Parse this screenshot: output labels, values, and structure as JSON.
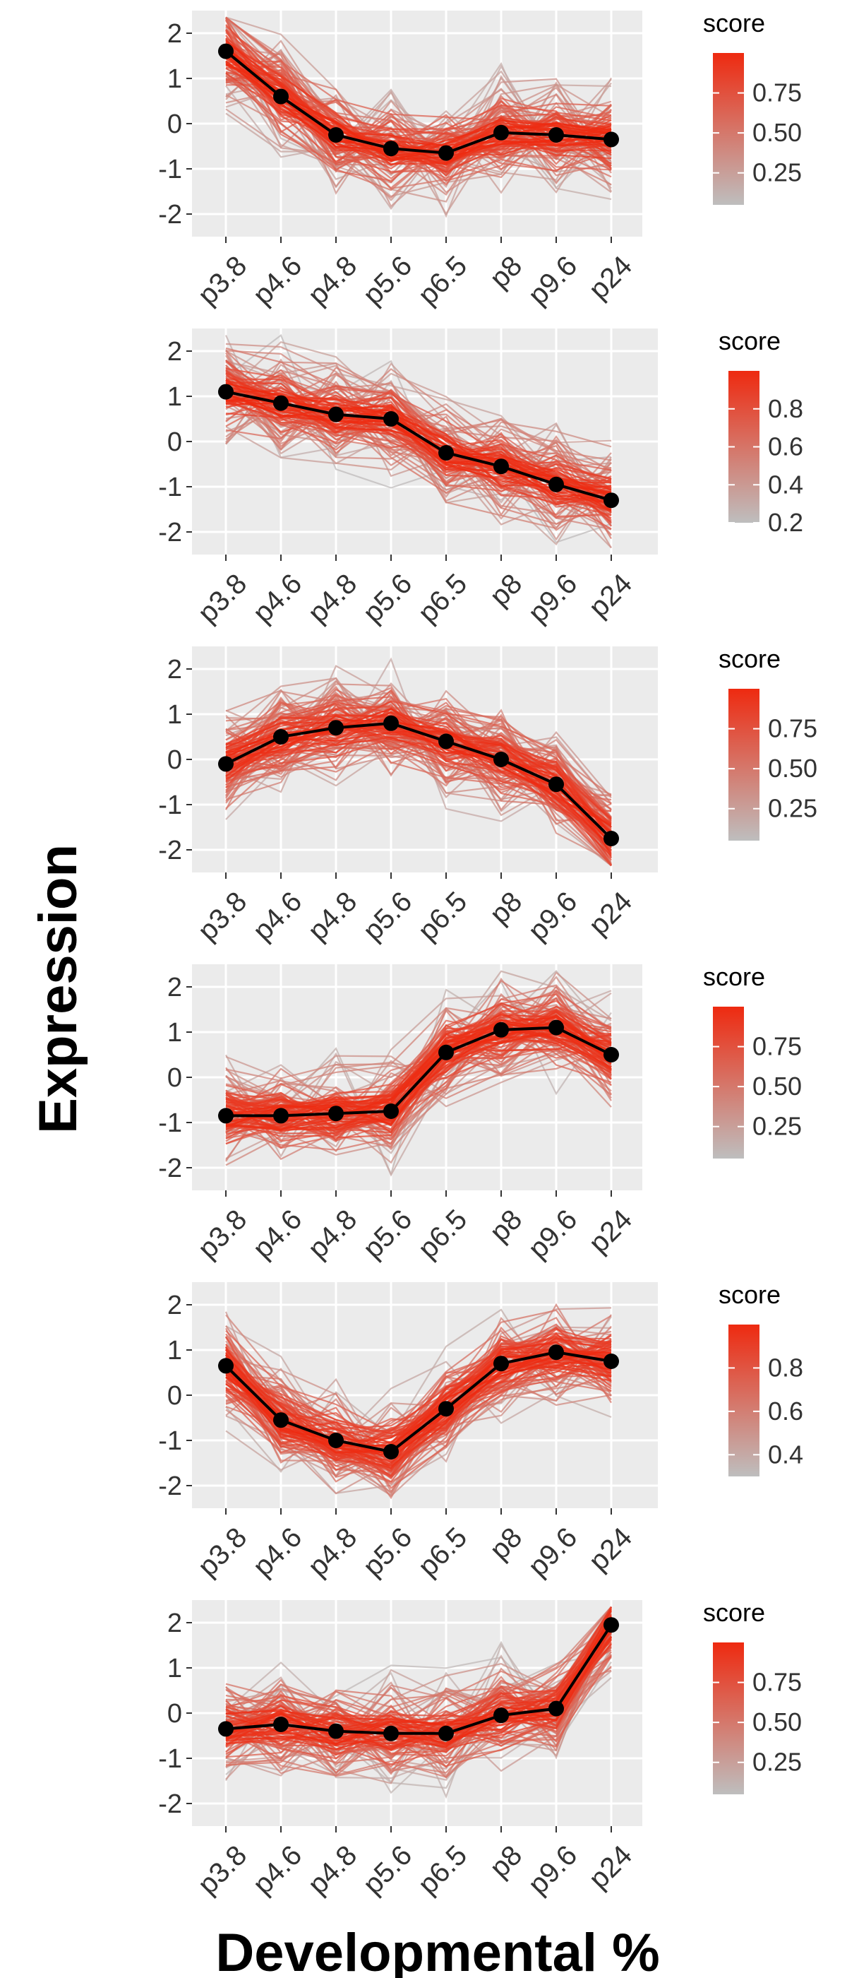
{
  "figure": {
    "ylabel": "Expression",
    "xlabel": "Developmental %"
  },
  "chart_data": [
    {
      "type": "line",
      "categories": [
        "p3.8",
        "p4.6",
        "p4.8",
        "p5.6",
        "p6.5",
        "p8",
        "p9.6",
        "p24"
      ],
      "ylim": [
        -2.5,
        2.5
      ],
      "yticks": [
        2,
        1,
        0,
        -1,
        -2
      ],
      "yticklabels": [
        "2",
        "1",
        "0",
        "-1",
        "-2"
      ],
      "grid": true,
      "series": [
        {
          "values": [
            1.6,
            0.6,
            -0.25,
            -0.55,
            -0.65,
            -0.2,
            -0.25,
            -0.35
          ]
        }
      ],
      "legend": {
        "title": "score",
        "position": "right",
        "range": [
          0.05,
          1.0
        ],
        "ticks": [
          0.75,
          0.5,
          0.25
        ],
        "ticklabels": [
          "0.75",
          "0.50",
          "0.25"
        ],
        "low_color": "#bebebe",
        "high_color": "#ee2a10"
      }
    },
    {
      "type": "line",
      "categories": [
        "p3.8",
        "p4.6",
        "p4.8",
        "p5.6",
        "p6.5",
        "p8",
        "p9.6",
        "p24"
      ],
      "ylim": [
        -2.5,
        2.5
      ],
      "yticks": [
        2,
        1,
        0,
        -1,
        -2
      ],
      "yticklabels": [
        "2",
        "1",
        "0",
        "-1",
        "-2"
      ],
      "grid": true,
      "series": [
        {
          "values": [
            1.1,
            0.85,
            0.6,
            0.5,
            -0.25,
            -0.55,
            -0.95,
            -1.3
          ]
        }
      ],
      "legend": {
        "title": "score",
        "position": "right",
        "range": [
          0.2,
          1.0
        ],
        "ticks": [
          0.8,
          0.6,
          0.4,
          0.2
        ],
        "ticklabels": [
          "0.8",
          "0.6",
          "0.4",
          "0.2"
        ],
        "low_color": "#bebebe",
        "high_color": "#ee2a10"
      }
    },
    {
      "type": "line",
      "categories": [
        "p3.8",
        "p4.6",
        "p4.8",
        "p5.6",
        "p6.5",
        "p8",
        "p9.6",
        "p24"
      ],
      "ylim": [
        -2.5,
        2.5
      ],
      "yticks": [
        2,
        1,
        0,
        -1,
        -2
      ],
      "yticklabels": [
        "2",
        "1",
        "0",
        "-1",
        "-2"
      ],
      "grid": true,
      "series": [
        {
          "values": [
            -0.1,
            0.5,
            0.7,
            0.8,
            0.4,
            0.0,
            -0.55,
            -1.75
          ]
        }
      ],
      "legend": {
        "title": "score",
        "position": "right",
        "range": [
          0.05,
          1.0
        ],
        "ticks": [
          0.75,
          0.5,
          0.25
        ],
        "ticklabels": [
          "0.75",
          "0.50",
          "0.25"
        ],
        "low_color": "#bebebe",
        "high_color": "#ee2a10"
      }
    },
    {
      "type": "line",
      "categories": [
        "p3.8",
        "p4.6",
        "p4.8",
        "p5.6",
        "p6.5",
        "p8",
        "p9.6",
        "p24"
      ],
      "ylim": [
        -2.5,
        2.5
      ],
      "yticks": [
        2,
        1,
        0,
        -1,
        -2
      ],
      "yticklabels": [
        "2",
        "1",
        "0",
        "-1",
        "-2"
      ],
      "grid": true,
      "series": [
        {
          "values": [
            -0.85,
            -0.85,
            -0.8,
            -0.75,
            0.55,
            1.05,
            1.1,
            0.5
          ]
        }
      ],
      "legend": {
        "title": "score",
        "position": "right",
        "range": [
          0.05,
          1.0
        ],
        "ticks": [
          0.75,
          0.5,
          0.25
        ],
        "ticklabels": [
          "0.75",
          "0.50",
          "0.25"
        ],
        "low_color": "#bebebe",
        "high_color": "#ee2a10"
      }
    },
    {
      "type": "line",
      "categories": [
        "p3.8",
        "p4.6",
        "p4.8",
        "p5.6",
        "p6.5",
        "p8",
        "p9.6",
        "p24"
      ],
      "ylim": [
        -2.5,
        2.5
      ],
      "yticks": [
        2,
        1,
        0,
        -1,
        -2
      ],
      "yticklabels": [
        "2",
        "1",
        "0",
        "-1",
        "-2"
      ],
      "grid": true,
      "series": [
        {
          "values": [
            0.65,
            -0.55,
            -1.0,
            -1.25,
            -0.3,
            0.7,
            0.95,
            0.75
          ]
        }
      ],
      "legend": {
        "title": "score",
        "position": "right",
        "range": [
          0.3,
          1.0
        ],
        "ticks": [
          0.8,
          0.6,
          0.4
        ],
        "ticklabels": [
          "0.8",
          "0.6",
          "0.4"
        ],
        "low_color": "#bebebe",
        "high_color": "#ee2a10"
      }
    },
    {
      "type": "line",
      "categories": [
        "p3.8",
        "p4.6",
        "p4.8",
        "p5.6",
        "p6.5",
        "p8",
        "p9.6",
        "p24"
      ],
      "ylim": [
        -2.5,
        2.5
      ],
      "yticks": [
        2,
        1,
        0,
        -1,
        -2
      ],
      "yticklabels": [
        "2",
        "1",
        "0",
        "-1",
        "-2"
      ],
      "grid": true,
      "series": [
        {
          "values": [
            -0.35,
            -0.25,
            -0.4,
            -0.45,
            -0.45,
            -0.05,
            0.1,
            1.95
          ]
        }
      ],
      "legend": {
        "title": "score",
        "position": "right",
        "range": [
          0.05,
          1.0
        ],
        "ticks": [
          0.75,
          0.5,
          0.25
        ],
        "ticklabels": [
          "0.75",
          "0.50",
          "0.25"
        ],
        "low_color": "#bebebe",
        "high_color": "#ee2a10"
      }
    }
  ]
}
